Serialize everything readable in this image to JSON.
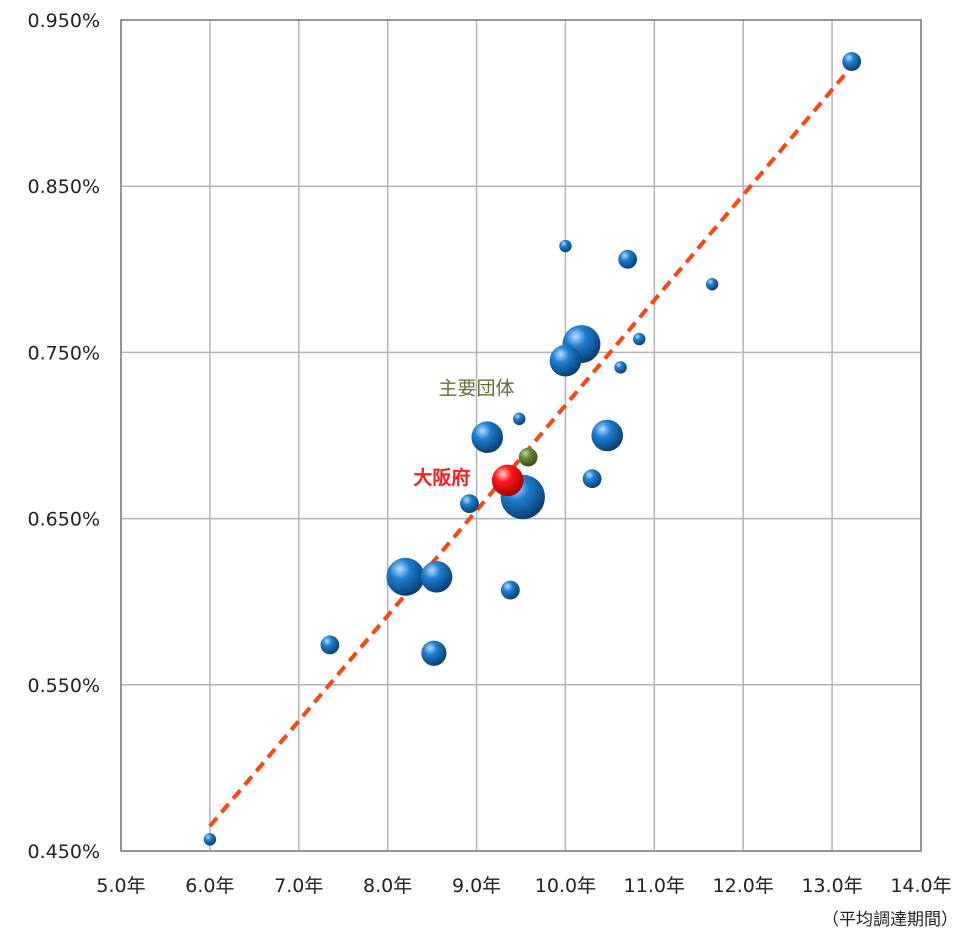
{
  "chart_data": {
    "type": "scatter",
    "xlabel": "（平均調達期間）",
    "ylim": [
      0.45,
      0.95
    ],
    "xlim": [
      5.0,
      14.0
    ],
    "y_ticks": [
      {
        "value": 0.95,
        "label": "0.950%"
      },
      {
        "value": 0.85,
        "label": "0.850%"
      },
      {
        "value": 0.75,
        "label": "0.750%"
      },
      {
        "value": 0.65,
        "label": "0.650%"
      },
      {
        "value": 0.55,
        "label": "0.550%"
      },
      {
        "value": 0.45,
        "label": "0.450%"
      }
    ],
    "x_ticks": [
      {
        "value": 5.0,
        "label": "5.0年"
      },
      {
        "value": 6.0,
        "label": "6.0年"
      },
      {
        "value": 7.0,
        "label": "7.0年"
      },
      {
        "value": 8.0,
        "label": "8.0年"
      },
      {
        "value": 9.0,
        "label": "9.0年"
      },
      {
        "value": 10.0,
        "label": "10.0年"
      },
      {
        "value": 11.0,
        "label": "11.0年"
      },
      {
        "value": 12.0,
        "label": "12.0年"
      },
      {
        "value": 13.0,
        "label": "13.0年"
      },
      {
        "value": 14.0,
        "label": "14.0年"
      }
    ],
    "grid": true,
    "points": [
      {
        "x": 6.0,
        "y": 0.457,
        "size": 1
      },
      {
        "x": 7.35,
        "y": 0.574,
        "size": 2
      },
      {
        "x": 8.2,
        "y": 0.615,
        "size": 5
      },
      {
        "x": 8.55,
        "y": 0.615,
        "size": 4
      },
      {
        "x": 8.52,
        "y": 0.569,
        "size": 3
      },
      {
        "x": 8.92,
        "y": 0.659,
        "size": 2
      },
      {
        "x": 9.12,
        "y": 0.699,
        "size": 4
      },
      {
        "x": 9.38,
        "y": 0.607,
        "size": 2
      },
      {
        "x": 9.48,
        "y": 0.71,
        "size": 1
      },
      {
        "x": 9.52,
        "y": 0.663,
        "size": 6
      },
      {
        "x": 10.0,
        "y": 0.745,
        "size": 4
      },
      {
        "x": 10.0,
        "y": 0.814,
        "size": 1
      },
      {
        "x": 10.18,
        "y": 0.755,
        "size": 5
      },
      {
        "x": 10.3,
        "y": 0.674,
        "size": 2
      },
      {
        "x": 10.47,
        "y": 0.7,
        "size": 4
      },
      {
        "x": 10.62,
        "y": 0.741,
        "size": 1
      },
      {
        "x": 10.7,
        "y": 0.806,
        "size": 2
      },
      {
        "x": 10.83,
        "y": 0.758,
        "size": 1
      },
      {
        "x": 11.65,
        "y": 0.791,
        "size": 1
      },
      {
        "x": 13.22,
        "y": 0.925,
        "size": 2
      }
    ],
    "highlights": [
      {
        "x": 9.58,
        "y": 0.687,
        "size": 2,
        "color": "#5b7135"
      },
      {
        "x": 9.35,
        "y": 0.673,
        "size": 4,
        "color": "#ff1a1a"
      }
    ],
    "trendline": {
      "x1": 6.0,
      "y1": 0.465,
      "x2": 13.22,
      "y2": 0.922,
      "color": "#ff4411"
    },
    "annotations": [
      {
        "text": "主要団体",
        "x": 9.0,
        "y": 0.729,
        "style": "group"
      },
      {
        "text": "大阪府",
        "x": 8.93,
        "y": 0.675,
        "style": "osaka"
      }
    ],
    "colors": {
      "bubble": "#0e66b0",
      "grid": "#b3b3b3",
      "axis": "#7f7f7f"
    }
  }
}
